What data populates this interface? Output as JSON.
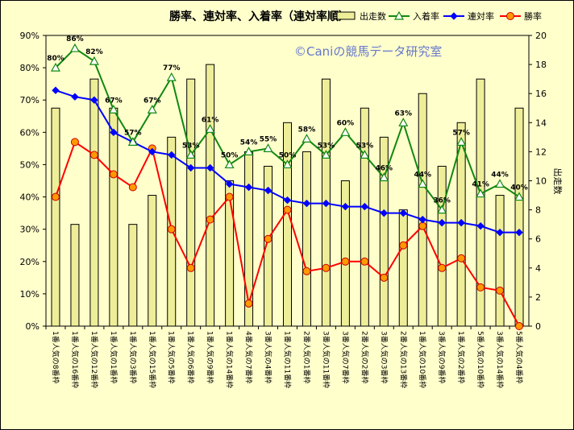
{
  "chart_data": {
    "type": "bar+line",
    "title": "勝率、連対率、入着率（連対率順）",
    "watermark": "©Caniの競馬データ研究室",
    "y2label": "出走数",
    "ylim": [
      0,
      90
    ],
    "y2lim": [
      0,
      20
    ],
    "yticks": [
      "0%",
      "10%",
      "20%",
      "30%",
      "40%",
      "50%",
      "60%",
      "70%",
      "80%",
      "90%"
    ],
    "y2ticks": [
      "0",
      "2",
      "4",
      "6",
      "8",
      "10",
      "12",
      "14",
      "16",
      "18",
      "20"
    ],
    "categories": [
      "1番人気の8番枠",
      "1番人気の16番枠",
      "1番人気の12番枠",
      "1番人気の1番枠",
      "1番人気の3番枠",
      "1番人気の15番枠",
      "1番人気の5番枠",
      "1番人気の6番枠",
      "1番人気の9番枠",
      "1番人気の14番枠",
      "4番人気の7番枠",
      "3番人気の4番枠",
      "1番人気の11番枠",
      "2番人気の1番枠",
      "3番人気の11番枠",
      "3番人気の7番枠",
      "2番人気の2番枠",
      "3番人気の3番枠",
      "2番人気の13番枠",
      "1番人気の10番枠",
      "3番人気の9番枠",
      "1番人気の2番枠",
      "5番人気の10番枠",
      "3番人気の14番枠",
      "5番人気の4番枠"
    ],
    "series": [
      {
        "name": "出走数",
        "kind": "bar",
        "axis": "right",
        "color": "#eeee99",
        "values": [
          15,
          7,
          17,
          15,
          7,
          9,
          13,
          17,
          18,
          10,
          12,
          11,
          14,
          12,
          17,
          10,
          15,
          13,
          8,
          16,
          11,
          14,
          17,
          9,
          15
        ]
      },
      {
        "name": "入着率",
        "kind": "line",
        "axis": "left",
        "color": "#118811",
        "marker": "triangle",
        "values": [
          80,
          86,
          82,
          67,
          57,
          67,
          77,
          53,
          61,
          50,
          54,
          55,
          50,
          58,
          53,
          60,
          53,
          46,
          63,
          44,
          36,
          57,
          41,
          44,
          40
        ]
      },
      {
        "name": "連対率",
        "kind": "line",
        "axis": "left",
        "color": "#0000ff",
        "marker": "diamond",
        "values": [
          73,
          71,
          70,
          60,
          57,
          54,
          53,
          49,
          49,
          44,
          43,
          42,
          39,
          38,
          38,
          37,
          37,
          35,
          35,
          33,
          32,
          32,
          31,
          29,
          29
        ]
      },
      {
        "name": "勝率",
        "kind": "line",
        "axis": "left",
        "color": "#ff0000",
        "marker": "circle",
        "values": [
          40,
          57,
          53,
          47,
          43,
          55,
          30,
          18,
          33,
          40,
          7,
          27,
          36,
          17,
          18,
          20,
          20,
          15,
          25,
          31,
          18,
          21,
          12,
          11,
          0
        ]
      }
    ],
    "data_labels": [
      "80%",
      "86%",
      "82%",
      "67%",
      "57%",
      "67%",
      "77%",
      "53%",
      "61%",
      "50%",
      "54%",
      "55%",
      "50%",
      "58%",
      "53%",
      "60%",
      "53%",
      "46%",
      "63%",
      "44%",
      "36%",
      "57%",
      "41%",
      "44%",
      "40%"
    ],
    "legend_position": "top-right",
    "grid": false
  }
}
